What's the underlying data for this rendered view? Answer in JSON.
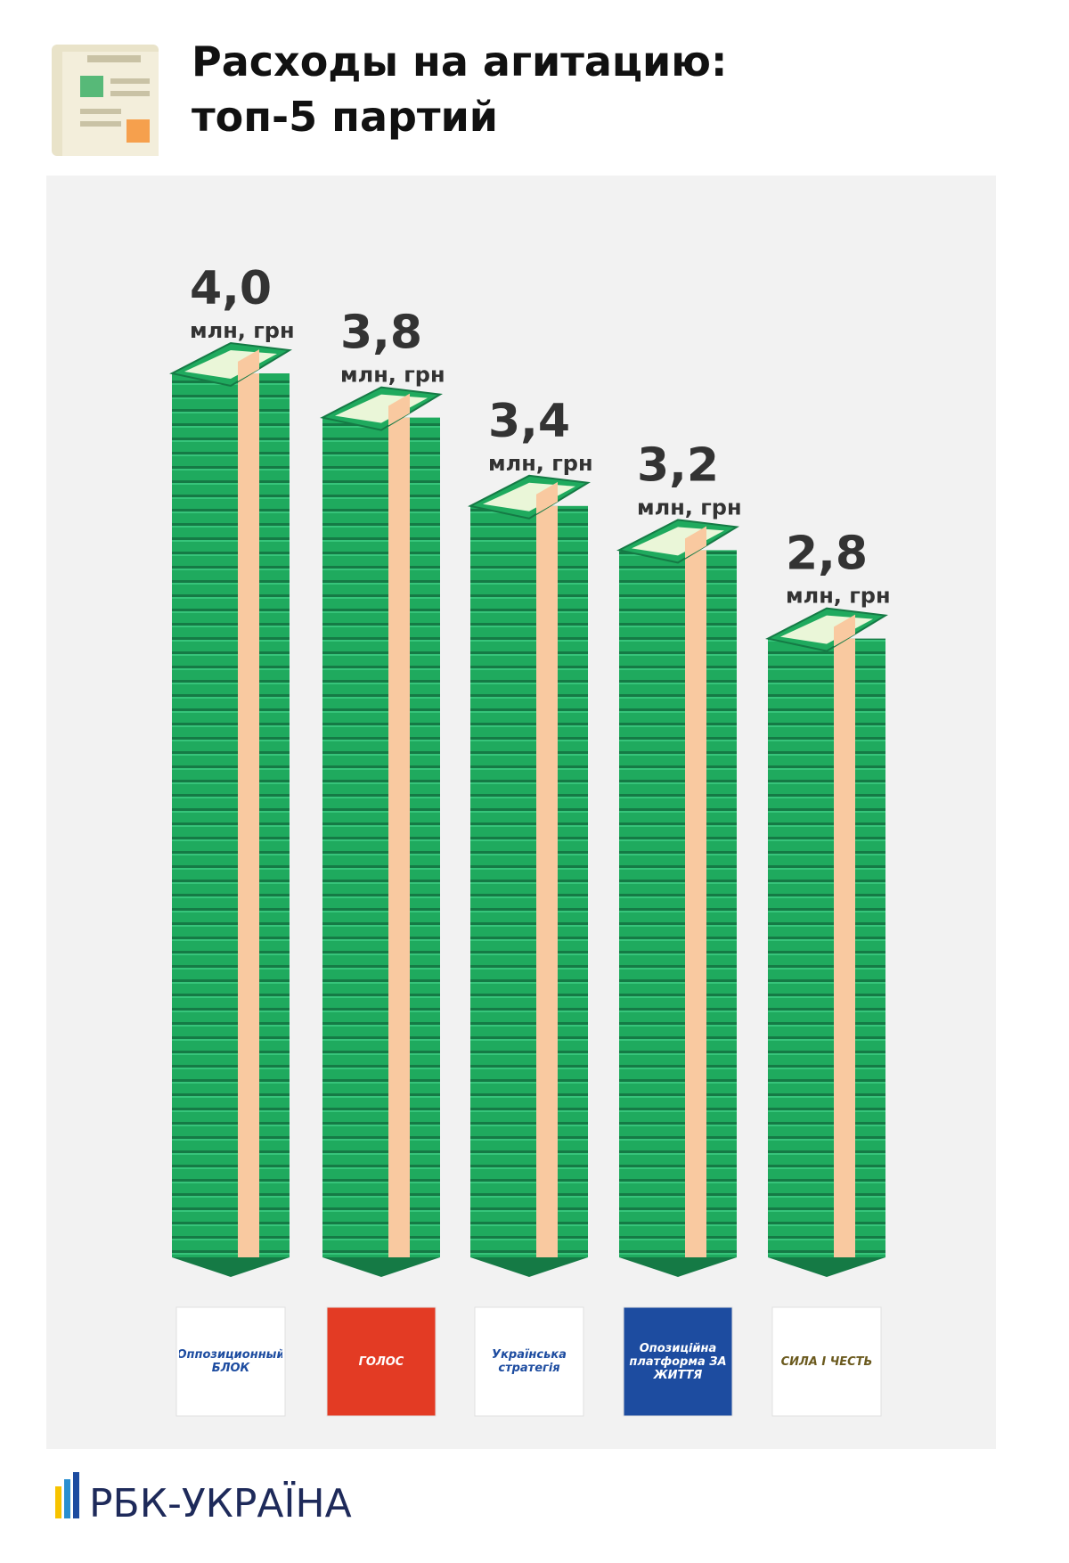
{
  "chart_data": {
    "type": "bar",
    "title": "Расходы на агитацию: топ-5 партий",
    "unit": "млн, грн",
    "categories": [
      "Оппозиционный БЛОК",
      "ГОЛОС",
      "Українська стратегія",
      "Опозиційна платформа ЗА ЖИТТЯ",
      "СИЛА І ЧЕСТЬ"
    ],
    "values": [
      4.0,
      3.8,
      3.4,
      3.2,
      2.8
    ],
    "value_labels": [
      "4,0",
      "3,8",
      "3,4",
      "3,2",
      "2,8"
    ],
    "color": "#1faa5e",
    "logo_colors": [
      "#ffffff",
      "#e33b24",
      "#ffffff",
      "#1d4ca0",
      "#ffffff"
    ],
    "logo_text_colors": [
      "#1d4ca0",
      "#ffffff",
      "#1d4ca0",
      "#ffffff",
      "#6b5a1e"
    ]
  },
  "brand": "РБК-УКРАЇНА"
}
